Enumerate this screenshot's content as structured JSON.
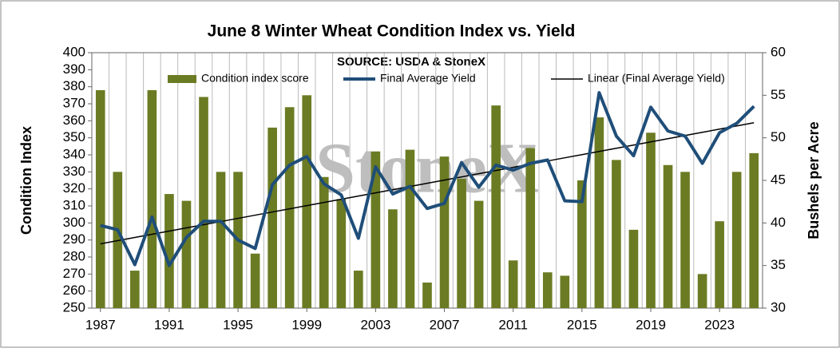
{
  "chart_data": {
    "type": "bar-line",
    "title": "June 8 Winter Wheat Condition Index vs. Yield",
    "annotation": "SOURCE: USDA & StoneX",
    "watermark": "StoneX",
    "y_label": "Condition Index",
    "y2_label": "Bushels per Acre",
    "trend_name": "Linear (Final Average Yield)",
    "trend_color": "#000000",
    "x": [
      1987,
      1988,
      1989,
      1990,
      1991,
      1992,
      1993,
      1994,
      1995,
      1996,
      1997,
      1998,
      1999,
      2000,
      2001,
      2002,
      2003,
      2004,
      2005,
      2006,
      2007,
      2008,
      2009,
      2010,
      2011,
      2012,
      2013,
      2014,
      2015,
      2016,
      2017,
      2018,
      2019,
      2020,
      2021,
      2022,
      2023,
      2024,
      2025
    ],
    "xlim": [
      1986.5,
      2025.5
    ],
    "xticks": [
      1987,
      1991,
      1995,
      1999,
      2003,
      2007,
      2011,
      2015,
      2019,
      2023
    ],
    "ylim": [
      250,
      400
    ],
    "yticks": [
      250,
      260,
      270,
      280,
      290,
      300,
      310,
      320,
      330,
      340,
      350,
      360,
      370,
      380,
      390,
      400
    ],
    "y2lim": [
      30,
      60
    ],
    "y2ticks": [
      30,
      35,
      40,
      45,
      50,
      55,
      60
    ],
    "legend": "top",
    "series": [
      {
        "name": "Condition index score",
        "type": "bar",
        "color": "#6b7b23",
        "values": [
          378,
          330,
          272,
          378,
          317,
          313,
          374,
          330,
          330,
          282,
          356,
          368,
          375,
          327,
          314,
          272,
          342,
          308,
          343,
          265,
          339,
          326,
          313,
          369,
          278,
          344,
          271,
          269,
          325,
          362,
          337,
          296,
          353,
          334,
          330,
          270,
          301,
          330,
          341
        ]
      },
      {
        "name": "Final Average Yield",
        "type": "line",
        "axis": "y2",
        "color": "#1f4e79",
        "values": [
          39.7,
          39.2,
          35.1,
          40.7,
          35.0,
          38.3,
          40.2,
          40.2,
          38.0,
          37.0,
          44.5,
          46.8,
          47.8,
          44.6,
          43.3,
          38.2,
          46.6,
          43.4,
          44.3,
          41.7,
          42.3,
          47.1,
          44.2,
          46.8,
          46.2,
          47.0,
          47.4,
          42.6,
          42.5,
          55.3,
          50.2,
          47.9,
          53.6,
          50.8,
          50.2,
          47.0,
          50.6,
          51.7,
          53.7
        ]
      }
    ]
  }
}
